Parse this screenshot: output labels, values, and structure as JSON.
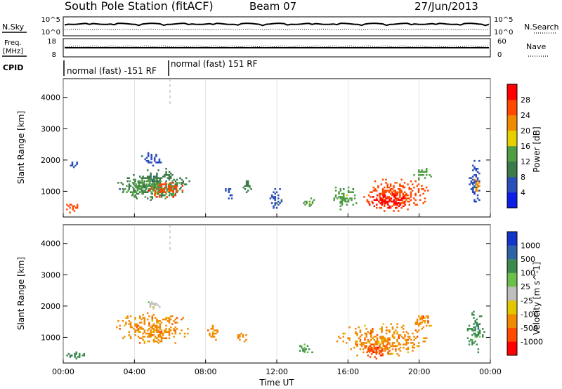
{
  "header": {
    "title": "South Pole Station (fitACF)",
    "beam": "Beam 07",
    "date": "27/Jun/2013"
  },
  "nsky_panel": {
    "left_label": "N.Sky",
    "right_label": "N.Search",
    "left_ticks": [
      "10^5",
      "10^0"
    ],
    "right_ticks": [
      "10^5",
      "10^0"
    ]
  },
  "freq_panel": {
    "left_label_line1": "Freq.",
    "left_label_line2": "[MHz]",
    "right_label": "Nave",
    "left_ticks": [
      "18",
      "8"
    ],
    "right_ticks": [
      "60",
      "0"
    ]
  },
  "cpid": {
    "label": "CPID",
    "segments": [
      {
        "text": "normal (fast) -151 RF",
        "start_hour": 0,
        "end_hour": 6
      },
      {
        "text": "normal (fast) 151 RF",
        "start_hour": 6,
        "end_hour": 24
      }
    ]
  },
  "colors": {
    "power_scale": [
      "#0b1fe6",
      "#2b4fb8",
      "#3d7a4a",
      "#4f9d44",
      "#e8d000",
      "#f08a00",
      "#ff4800",
      "#ff0000"
    ],
    "velocity_scale": [
      "#1436c8",
      "#2e64a6",
      "#3c8a4c",
      "#6cc04a",
      "#bebebe",
      "#e2c600",
      "#f08a00",
      "#ff4a00",
      "#ff0000"
    ],
    "grid": "#c8c8c8"
  },
  "chart_data": [
    {
      "type": "heatmap",
      "title": "",
      "xlabel": "Time UT",
      "ylabel": "Slant Range [km]",
      "xlim": [
        0,
        24
      ],
      "ylim": [
        180,
        4600
      ],
      "x_ticks": [
        0,
        4,
        8,
        12,
        16,
        20,
        24
      ],
      "x_tick_labels": [
        "00:00",
        "04:00",
        "08:00",
        "12:00",
        "16:00",
        "20:00",
        "00:00"
      ],
      "y_ticks": [
        1000,
        2000,
        3000,
        4000
      ],
      "y_tick_labels": [
        "1000",
        "2000",
        "3000",
        "4000"
      ],
      "colorbar": {
        "label": "Power [dB]",
        "tick_labels": [
          "4",
          "8",
          "12",
          "16",
          "20",
          "24",
          "28"
        ],
        "range": [
          0,
          32
        ]
      },
      "patches": [
        {
          "t0": 0.0,
          "t1": 1.0,
          "r0": 250,
          "r1": 700,
          "value": 26
        },
        {
          "t0": 0.2,
          "t1": 0.9,
          "r0": 1700,
          "r1": 2000,
          "value": 5
        },
        {
          "t0": 2.7,
          "t1": 7.3,
          "r0": 600,
          "r1": 1800,
          "value": 8
        },
        {
          "t0": 3.0,
          "t1": 7.0,
          "r0": 700,
          "r1": 1500,
          "value": 14
        },
        {
          "t0": 4.5,
          "t1": 7.0,
          "r0": 750,
          "r1": 1350,
          "value": 27
        },
        {
          "t0": 4.2,
          "t1": 5.8,
          "r0": 1800,
          "r1": 2300,
          "value": 6
        },
        {
          "t0": 9.0,
          "t1": 9.6,
          "r0": 600,
          "r1": 1200,
          "value": 5
        },
        {
          "t0": 10.0,
          "t1": 10.6,
          "r0": 900,
          "r1": 1400,
          "value": 10
        },
        {
          "t0": 11.5,
          "t1": 12.4,
          "r0": 400,
          "r1": 1200,
          "value": 5
        },
        {
          "t0": 13.3,
          "t1": 14.3,
          "r0": 450,
          "r1": 800,
          "value": 15
        },
        {
          "t0": 15.0,
          "t1": 16.6,
          "r0": 350,
          "r1": 1300,
          "value": 13
        },
        {
          "t0": 16.6,
          "t1": 20.8,
          "r0": 300,
          "r1": 1500,
          "value": 25
        },
        {
          "t0": 17.0,
          "t1": 19.5,
          "r0": 350,
          "r1": 1050,
          "value": 30
        },
        {
          "t0": 19.5,
          "t1": 20.8,
          "r0": 1300,
          "r1": 1800,
          "value": 14
        },
        {
          "t0": 22.7,
          "t1": 23.6,
          "r0": 500,
          "r1": 2200,
          "value": 7
        },
        {
          "t0": 23.0,
          "t1": 23.5,
          "r0": 900,
          "r1": 1500,
          "value": 20
        }
      ]
    },
    {
      "type": "heatmap",
      "title": "",
      "xlabel": "Time UT",
      "ylabel": "Slant Range [km]",
      "xlim": [
        0,
        24
      ],
      "ylim": [
        180,
        4600
      ],
      "x_ticks": [
        0,
        4,
        8,
        12,
        16,
        20,
        24
      ],
      "x_tick_labels": [
        "00:00",
        "04:00",
        "08:00",
        "12:00",
        "16:00",
        "20:00",
        "00:00"
      ],
      "y_ticks": [
        1000,
        2000,
        3000,
        4000
      ],
      "y_tick_labels": [
        "1000",
        "2000",
        "3000",
        "4000"
      ],
      "colorbar": {
        "label": "Velocity [m s^-1]",
        "tick_labels": [
          "1000",
          "500",
          "100",
          "25",
          "-25",
          "-100",
          "-500",
          "-1000"
        ]
      },
      "patches": [
        {
          "t0": 0.0,
          "t1": 1.3,
          "r0": 250,
          "r1": 650,
          "value": 100
        },
        {
          "t0": 2.7,
          "t1": 7.3,
          "r0": 650,
          "r1": 1900,
          "value": -150
        },
        {
          "t0": 4.5,
          "t1": 5.8,
          "r0": 1900,
          "r1": 2200,
          "value": 10
        },
        {
          "t0": 8.0,
          "t1": 8.8,
          "r0": 800,
          "r1": 1500,
          "value": -150
        },
        {
          "t0": 9.6,
          "t1": 10.5,
          "r0": 800,
          "r1": 1300,
          "value": -150
        },
        {
          "t0": 13.0,
          "t1": 14.2,
          "r0": 350,
          "r1": 900,
          "value": 120
        },
        {
          "t0": 15.0,
          "t1": 20.8,
          "r0": 300,
          "r1": 1500,
          "value": -150
        },
        {
          "t0": 16.6,
          "t1": 18.5,
          "r0": 300,
          "r1": 900,
          "value": -600
        },
        {
          "t0": 19.5,
          "t1": 20.8,
          "r0": 1200,
          "r1": 1800,
          "value": -200
        },
        {
          "t0": 22.6,
          "t1": 23.7,
          "r0": 400,
          "r1": 2000,
          "value": 150
        }
      ]
    }
  ]
}
